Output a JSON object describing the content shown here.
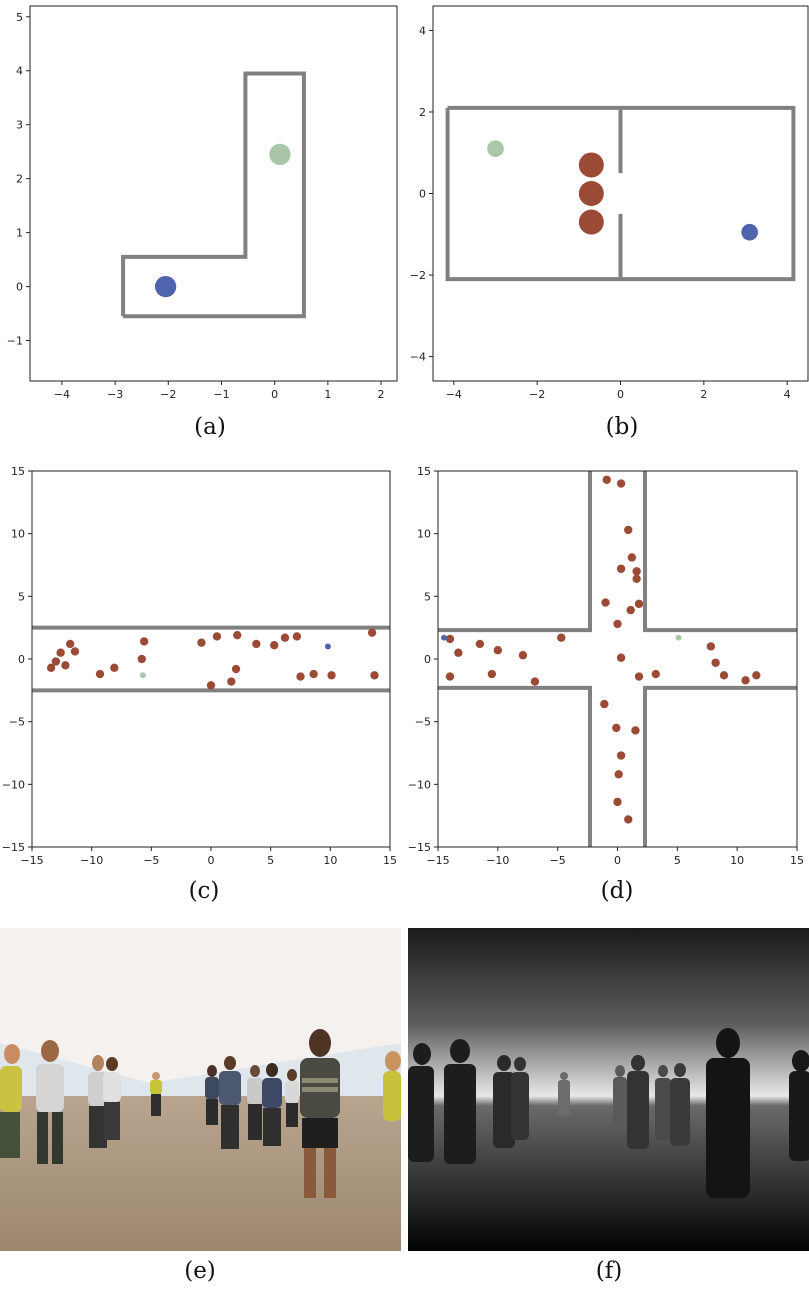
{
  "colors": {
    "wall": "#808080",
    "robot": "#5063ad",
    "goal": "#a9c6a8",
    "human": "#9b4a36"
  },
  "panels": [
    {
      "id": "a",
      "caption": "(a)",
      "chart_data": {
        "type": "scatter",
        "xlim": [
          -4.6,
          2.3
        ],
        "ylim": [
          -1.75,
          5.2
        ],
        "xticks": [
          -4,
          -3,
          -2,
          -1,
          0,
          1,
          2
        ],
        "yticks": [
          -1,
          0,
          1,
          2,
          3,
          4,
          5
        ],
        "walls": [
          [
            [
              -2.85,
              -0.55
            ],
            [
              0.55,
              -0.55
            ],
            [
              0.55,
              3.95
            ],
            [
              -0.55,
              3.95
            ],
            [
              -0.55,
              0.55
            ],
            [
              -2.85,
              0.55
            ],
            [
              -2.85,
              -0.55
            ]
          ]
        ],
        "robots": [
          {
            "x": -2.05,
            "y": 0.0,
            "r": 0.2
          }
        ],
        "goals": [
          {
            "x": 0.1,
            "y": 2.45,
            "r": 0.2
          }
        ],
        "humans": []
      }
    },
    {
      "id": "b",
      "caption": "(b)",
      "chart_data": {
        "type": "scatter",
        "xlim": [
          -4.5,
          4.5
        ],
        "ylim": [
          -4.6,
          4.6
        ],
        "xticks": [
          -4,
          -2,
          0,
          2,
          4
        ],
        "yticks": [
          -4,
          -2,
          0,
          2,
          4
        ],
        "walls": [
          [
            [
              -4.15,
              2.1
            ],
            [
              4.15,
              2.1
            ],
            [
              4.15,
              -2.1
            ],
            [
              -4.15,
              -2.1
            ],
            [
              -4.15,
              2.1
            ]
          ],
          [
            [
              0.0,
              2.1
            ],
            [
              0.0,
              0.5
            ]
          ],
          [
            [
              0.0,
              -0.5
            ],
            [
              0.0,
              -2.1
            ]
          ]
        ],
        "robots": [
          {
            "x": 3.1,
            "y": -0.95,
            "r": 0.2
          }
        ],
        "goals": [
          {
            "x": -3.0,
            "y": 1.1,
            "r": 0.2
          }
        ],
        "humans": [
          {
            "x": -0.7,
            "y": 0.7,
            "r": 0.3
          },
          {
            "x": -0.7,
            "y": 0.0,
            "r": 0.3
          },
          {
            "x": -0.7,
            "y": -0.7,
            "r": 0.3
          }
        ]
      }
    },
    {
      "id": "c",
      "caption": "(c)",
      "chart_data": {
        "type": "scatter",
        "xlim": [
          -15,
          15
        ],
        "ylim": [
          -15,
          15
        ],
        "xticks": [
          -15,
          -10,
          -5,
          0,
          5,
          10,
          15
        ],
        "yticks": [
          -15,
          -10,
          -5,
          0,
          5,
          10,
          15
        ],
        "walls": [
          [
            [
              -15,
              2.5
            ],
            [
              15,
              2.5
            ]
          ],
          [
            [
              -15,
              -2.5
            ],
            [
              15,
              -2.5
            ]
          ]
        ],
        "robots": [
          {
            "x": 9.8,
            "y": 1.0,
            "r": 0.25
          }
        ],
        "goals": [
          {
            "x": -5.7,
            "y": -1.3,
            "r": 0.25
          }
        ],
        "humans": [
          {
            "x": -13.4,
            "y": -0.7,
            "r": 0.35
          },
          {
            "x": -13.0,
            "y": -0.2,
            "r": 0.35
          },
          {
            "x": -12.6,
            "y": 0.5,
            "r": 0.35
          },
          {
            "x": -12.2,
            "y": -0.5,
            "r": 0.35
          },
          {
            "x": -11.8,
            "y": 1.2,
            "r": 0.35
          },
          {
            "x": -11.4,
            "y": 0.6,
            "r": 0.35
          },
          {
            "x": -9.3,
            "y": -1.2,
            "r": 0.35
          },
          {
            "x": -8.1,
            "y": -0.7,
            "r": 0.35
          },
          {
            "x": -5.8,
            "y": 0.0,
            "r": 0.35
          },
          {
            "x": -5.6,
            "y": 1.4,
            "r": 0.35
          },
          {
            "x": -0.8,
            "y": 1.3,
            "r": 0.35
          },
          {
            "x": 0.0,
            "y": -2.1,
            "r": 0.35
          },
          {
            "x": 0.5,
            "y": 1.8,
            "r": 0.35
          },
          {
            "x": 1.7,
            "y": -1.8,
            "r": 0.35
          },
          {
            "x": 2.1,
            "y": -0.8,
            "r": 0.35
          },
          {
            "x": 2.2,
            "y": 1.9,
            "r": 0.35
          },
          {
            "x": 3.8,
            "y": 1.2,
            "r": 0.35
          },
          {
            "x": 5.3,
            "y": 1.1,
            "r": 0.35
          },
          {
            "x": 6.2,
            "y": 1.7,
            "r": 0.35
          },
          {
            "x": 7.2,
            "y": 1.8,
            "r": 0.35
          },
          {
            "x": 7.5,
            "y": -1.4,
            "r": 0.35
          },
          {
            "x": 8.6,
            "y": -1.2,
            "r": 0.35
          },
          {
            "x": 10.1,
            "y": -1.3,
            "r": 0.35
          },
          {
            "x": 13.5,
            "y": 2.1,
            "r": 0.35
          },
          {
            "x": 13.7,
            "y": -1.3,
            "r": 0.35
          }
        ]
      }
    },
    {
      "id": "d",
      "caption": "(d)",
      "chart_data": {
        "type": "scatter",
        "xlim": [
          -15,
          15
        ],
        "ylim": [
          -15,
          15
        ],
        "xticks": [
          -15,
          -10,
          -5,
          0,
          5,
          10,
          15
        ],
        "yticks": [
          -15,
          -10,
          -5,
          0,
          5,
          10,
          15
        ],
        "walls": [
          [
            [
              -15,
              2.3
            ],
            [
              -2.3,
              2.3
            ],
            [
              -2.3,
              15
            ]
          ],
          [
            [
              2.3,
              15
            ],
            [
              2.3,
              2.3
            ],
            [
              15,
              2.3
            ]
          ],
          [
            [
              -15,
              -2.3
            ],
            [
              -2.3,
              -2.3
            ],
            [
              -2.3,
              -15
            ]
          ],
          [
            [
              2.3,
              -15
            ],
            [
              2.3,
              -2.3
            ],
            [
              15,
              -2.3
            ]
          ]
        ],
        "robots": [
          {
            "x": -14.5,
            "y": 1.7,
            "r": 0.25
          }
        ],
        "goals": [
          {
            "x": 5.1,
            "y": 1.7,
            "r": 0.25
          }
        ],
        "humans": [
          {
            "x": -0.9,
            "y": 14.3,
            "r": 0.35
          },
          {
            "x": 0.3,
            "y": 14.0,
            "r": 0.35
          },
          {
            "x": 0.9,
            "y": 10.3,
            "r": 0.35
          },
          {
            "x": 1.2,
            "y": 8.1,
            "r": 0.35
          },
          {
            "x": 0.3,
            "y": 7.2,
            "r": 0.35
          },
          {
            "x": 1.6,
            "y": 7.0,
            "r": 0.35
          },
          {
            "x": 1.6,
            "y": 6.4,
            "r": 0.35
          },
          {
            "x": -1.0,
            "y": 4.5,
            "r": 0.35
          },
          {
            "x": 1.1,
            "y": 3.9,
            "r": 0.35
          },
          {
            "x": 1.8,
            "y": 4.4,
            "r": 0.35
          },
          {
            "x": 0.0,
            "y": 2.8,
            "r": 0.35
          },
          {
            "x": 0.3,
            "y": 0.1,
            "r": 0.35
          },
          {
            "x": -14.0,
            "y": 1.6,
            "r": 0.35
          },
          {
            "x": -13.3,
            "y": 0.5,
            "r": 0.35
          },
          {
            "x": -11.5,
            "y": 1.2,
            "r": 0.35
          },
          {
            "x": -10.0,
            "y": 0.7,
            "r": 0.35
          },
          {
            "x": -7.9,
            "y": 0.3,
            "r": 0.35
          },
          {
            "x": -4.7,
            "y": 1.7,
            "r": 0.35
          },
          {
            "x": -14.0,
            "y": -1.4,
            "r": 0.35
          },
          {
            "x": -10.5,
            "y": -1.2,
            "r": 0.35
          },
          {
            "x": -6.9,
            "y": -1.8,
            "r": 0.35
          },
          {
            "x": 1.8,
            "y": -1.4,
            "r": 0.35
          },
          {
            "x": 3.2,
            "y": -1.2,
            "r": 0.35
          },
          {
            "x": 7.8,
            "y": 1.0,
            "r": 0.35
          },
          {
            "x": 8.2,
            "y": -0.3,
            "r": 0.35
          },
          {
            "x": 8.9,
            "y": -1.3,
            "r": 0.35
          },
          {
            "x": 10.7,
            "y": -1.7,
            "r": 0.35
          },
          {
            "x": 11.6,
            "y": -1.3,
            "r": 0.35
          },
          {
            "x": -1.1,
            "y": -3.6,
            "r": 0.35
          },
          {
            "x": 1.5,
            "y": -5.7,
            "r": 0.35
          },
          {
            "x": -0.1,
            "y": -5.5,
            "r": 0.35
          },
          {
            "x": 0.3,
            "y": -7.7,
            "r": 0.35
          },
          {
            "x": 0.1,
            "y": -9.2,
            "r": 0.35
          },
          {
            "x": 0.0,
            "y": -11.4,
            "r": 0.35
          },
          {
            "x": 0.9,
            "y": -12.8,
            "r": 0.35
          }
        ]
      }
    },
    {
      "id": "e",
      "caption": "(e)",
      "image": "rgb-render-crowd"
    },
    {
      "id": "f",
      "caption": "(f)",
      "image": "depth-render-crowd"
    }
  ]
}
